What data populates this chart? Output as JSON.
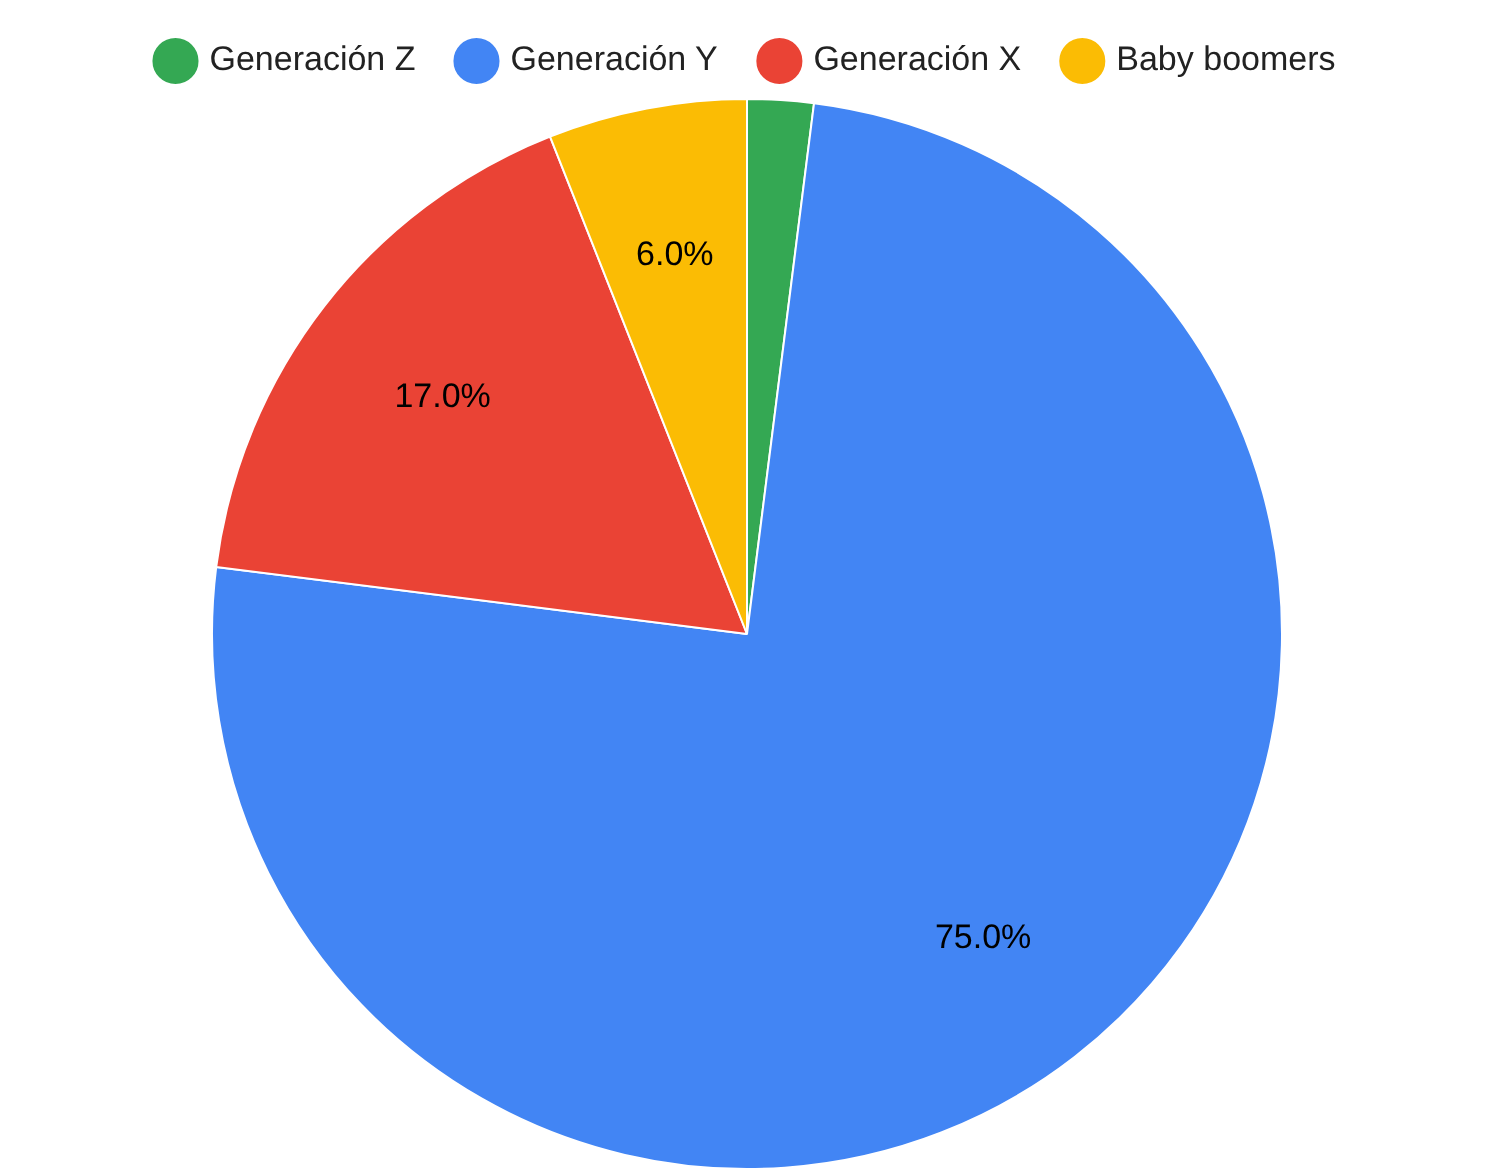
{
  "chart_data": {
    "type": "pie",
    "categories": [
      "Generación Z",
      "Generación Y",
      "Generación X",
      "Baby boomers"
    ],
    "values": [
      2,
      75,
      17,
      6
    ],
    "colors": [
      "#34a853",
      "#4285f4",
      "#ea4335",
      "#fbbc04"
    ],
    "value_labels": [
      null,
      "75.0%",
      "17.0%",
      "6.0%"
    ],
    "legend": "top"
  }
}
